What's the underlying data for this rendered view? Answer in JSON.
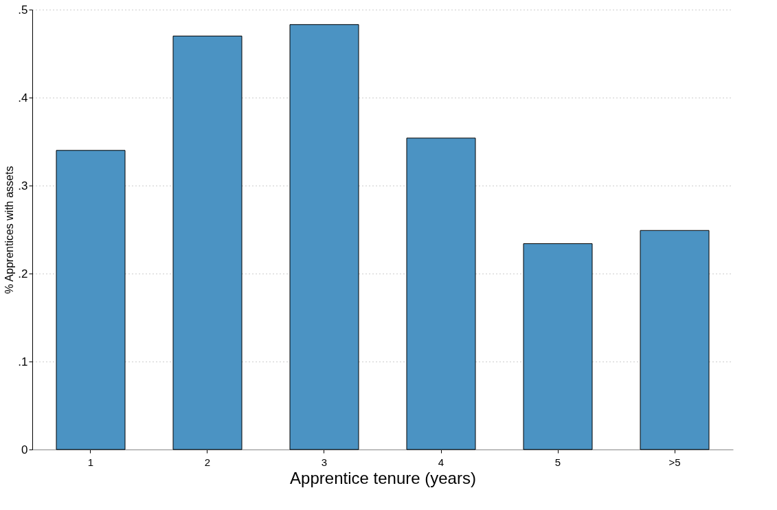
{
  "chart_data": {
    "type": "bar",
    "xlabel": "Apprentice tenure (years)",
    "ylabel": "% Apprentices with assets",
    "categories": [
      "1",
      "2",
      "3",
      "4",
      "5",
      ">5"
    ],
    "values": [
      0.34,
      0.47,
      0.483,
      0.354,
      0.234,
      0.249
    ],
    "color": "#4b93c3",
    "ylim": [
      0,
      0.5
    ],
    "yticks": [
      0,
      {
        "value": 0.1,
        "label": ".1"
      },
      {
        "value": 0.2,
        "label": ".2"
      },
      {
        "value": 0.3,
        "label": ".3"
      },
      {
        "value": 0.4,
        "label": ".4"
      },
      {
        "value": 0.5,
        "label": ".5"
      }
    ],
    "grid": "y"
  }
}
